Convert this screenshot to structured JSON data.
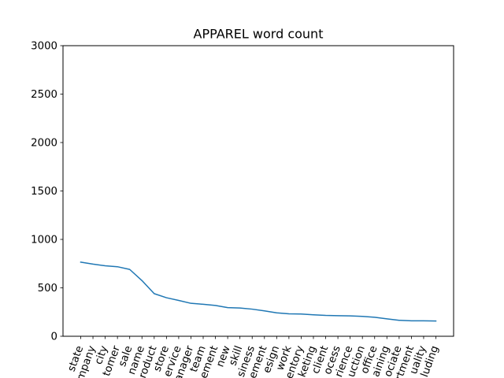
{
  "chart_data": {
    "type": "line",
    "title": "APPAREL word count",
    "xlabel": "",
    "ylabel": "",
    "ylim": [
      0,
      3000
    ],
    "y_ticks": [
      0,
      500,
      1000,
      1500,
      2000,
      2500,
      3000
    ],
    "grid": false,
    "legend": "none",
    "line_color": "#1f77b4",
    "categories": [
      "state",
      "company",
      "city",
      "customer",
      "sale",
      "name",
      "product",
      "store",
      "service",
      "manager",
      "team",
      "requirement",
      "new",
      "skill",
      "business",
      "management",
      "design",
      "work",
      "inventory",
      "marketing",
      "client",
      "process",
      "experience",
      "production",
      "office",
      "training",
      "associate",
      "department",
      "quality",
      "including"
    ],
    "x_tick_labels": [
      "state",
      "mpany",
      "city",
      "tomer",
      "sale",
      "name",
      "roduct",
      "store",
      "ervice",
      "anager",
      "team",
      "ement",
      "new",
      "skill",
      "siness",
      "ement",
      "esign",
      "work",
      "entory",
      "keting",
      "client",
      "ocess",
      "rience",
      "uction",
      "office",
      "aining",
      "ociate",
      "rtment",
      "uality",
      "luding"
    ],
    "series": [
      {
        "values": [
          765,
          745,
          728,
          718,
          690,
          575,
          440,
          398,
          370,
          340,
          330,
          318,
          296,
          292,
          280,
          262,
          242,
          232,
          230,
          222,
          215,
          212,
          210,
          205,
          196,
          180,
          165,
          160,
          160,
          158
        ]
      }
    ]
  }
}
